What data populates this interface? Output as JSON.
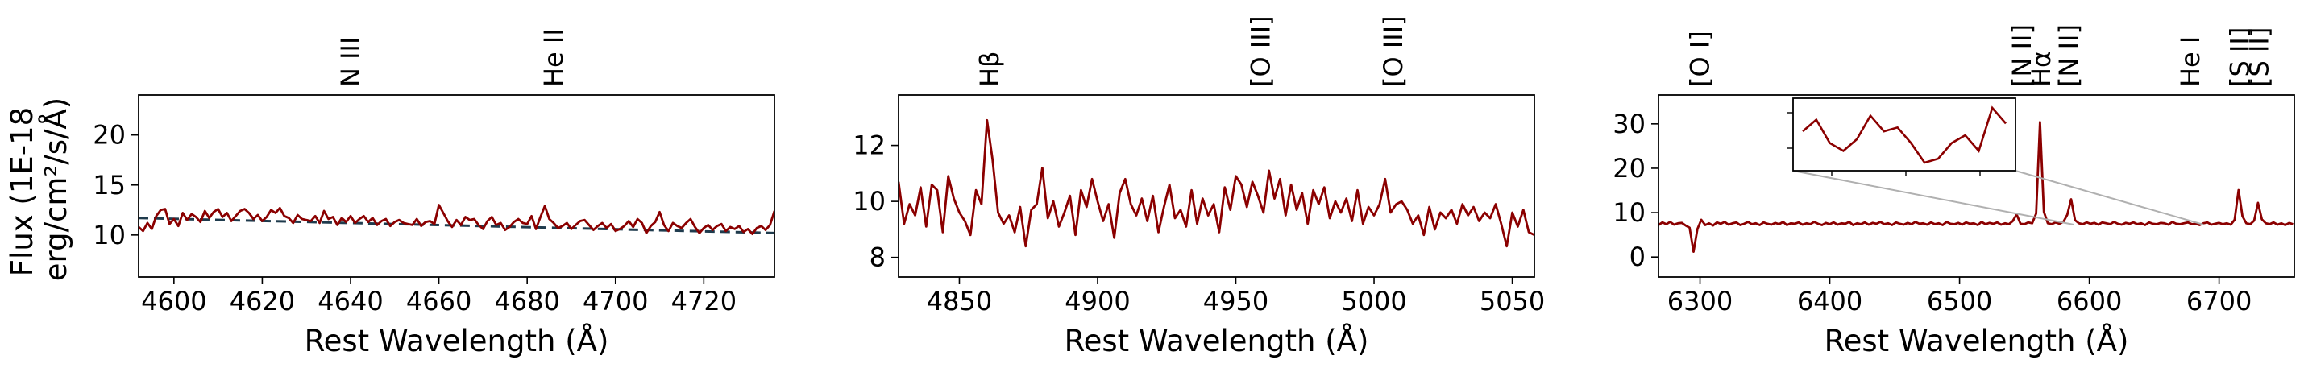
{
  "figure": {
    "ylabel_line1": "Flux (1E-18",
    "ylabel_line2": "erg/cm²/s/Å)"
  },
  "colors": {
    "spectrum": "#8b0000",
    "continuum": "#1f3b4d",
    "inset_lines": "#b0b0b0"
  },
  "chart_data": [
    {
      "type": "line",
      "xlabel": "Rest Wavelength (Å)",
      "xlim": [
        4592,
        4736
      ],
      "ylim": [
        5.8,
        24
      ],
      "xticks": [
        4600,
        4620,
        4640,
        4660,
        4680,
        4700,
        4720
      ],
      "yticks": [
        10,
        15,
        20
      ],
      "line_markers": [
        {
          "label": "N III",
          "x": 4640
        },
        {
          "label": "He II",
          "x": 4686
        }
      ],
      "continuum": {
        "x": [
          4592,
          4736
        ],
        "y": [
          11.7,
          10.2
        ]
      },
      "series": {
        "x": [
          4592,
          4593,
          4594,
          4595,
          4596,
          4597,
          4598,
          4599,
          4600,
          4601,
          4602,
          4603,
          4604,
          4605,
          4606,
          4607,
          4608,
          4609,
          4610,
          4611,
          4612,
          4613,
          4614,
          4615,
          4616,
          4617,
          4618,
          4619,
          4620,
          4621,
          4622,
          4623,
          4624,
          4625,
          4626,
          4627,
          4628,
          4629,
          4630,
          4631,
          4632,
          4633,
          4634,
          4635,
          4636,
          4637,
          4638,
          4639,
          4640,
          4641,
          4642,
          4643,
          4644,
          4645,
          4646,
          4647,
          4648,
          4649,
          4650,
          4651,
          4652,
          4653,
          4654,
          4655,
          4656,
          4657,
          4658,
          4659,
          4660,
          4661,
          4662,
          4663,
          4664,
          4665,
          4666,
          4667,
          4668,
          4669,
          4670,
          4671,
          4672,
          4673,
          4674,
          4675,
          4676,
          4677,
          4678,
          4679,
          4680,
          4681,
          4682,
          4683,
          4684,
          4685,
          4686,
          4687,
          4688,
          4689,
          4690,
          4691,
          4692,
          4693,
          4694,
          4695,
          4696,
          4697,
          4698,
          4699,
          4700,
          4701,
          4702,
          4703,
          4704,
          4705,
          4706,
          4707,
          4708,
          4709,
          4710,
          4711,
          4712,
          4713,
          4714,
          4715,
          4716,
          4717,
          4718,
          4719,
          4720,
          4721,
          4722,
          4723,
          4724,
          4725,
          4726,
          4727,
          4728,
          4729,
          4730,
          4731,
          4732,
          4733,
          4734,
          4735,
          4736
        ],
        "y": [
          10.8,
          10.4,
          11.2,
          10.6,
          11.9,
          12.5,
          12.6,
          11.1,
          11.6,
          10.9,
          12.2,
          11.5,
          12.1,
          11.8,
          11.3,
          12.4,
          11.7,
          12.3,
          12.6,
          11.8,
          12.2,
          11.4,
          11.9,
          12.4,
          12.6,
          12.2,
          11.6,
          12.0,
          11.4,
          11.8,
          12.5,
          12.2,
          12.7,
          11.9,
          11.7,
          11.2,
          12.0,
          11.6,
          11.5,
          11.4,
          11.9,
          11.2,
          12.4,
          11.6,
          11.8,
          11.0,
          11.7,
          11.3,
          11.9,
          11.2,
          11.6,
          11.9,
          11.3,
          11.7,
          11.0,
          11.4,
          11.6,
          10.9,
          11.3,
          11.5,
          11.2,
          11.1,
          11.0,
          11.6,
          10.9,
          11.3,
          11.4,
          11.1,
          13.0,
          12.2,
          11.4,
          10.8,
          11.5,
          11.0,
          11.8,
          11.5,
          11.6,
          11.0,
          10.6,
          11.4,
          11.8,
          11.0,
          11.2,
          10.5,
          10.8,
          11.3,
          11.6,
          11.2,
          11.1,
          11.9,
          10.6,
          11.8,
          12.9,
          11.6,
          11.2,
          10.7,
          10.9,
          11.2,
          10.6,
          11.0,
          11.4,
          11.5,
          11.0,
          10.5,
          10.9,
          11.2,
          10.7,
          11.1,
          10.4,
          10.6,
          10.9,
          11.4,
          10.8,
          11.6,
          11.2,
          10.2,
          10.9,
          11.3,
          12.3,
          11.0,
          10.4,
          11.2,
          10.9,
          10.7,
          11.2,
          11.6,
          10.8,
          10.2,
          10.7,
          11.0,
          10.5,
          10.9,
          11.1,
          10.4,
          10.8,
          10.6,
          10.9,
          10.3,
          10.6,
          10.1,
          10.7,
          10.9,
          10.5,
          11.0,
          12.4
        ]
      }
    },
    {
      "type": "line",
      "xlabel": "Rest Wavelength (Å)",
      "xlim": [
        4828,
        5058
      ],
      "ylim": [
        7.3,
        13.8
      ],
      "xticks": [
        4850,
        4900,
        4950,
        5000,
        5050
      ],
      "yticks": [
        8,
        10,
        12
      ],
      "line_markers": [
        {
          "label": "Hβ",
          "x": 4861
        },
        {
          "label": "[O III]",
          "x": 4959
        },
        {
          "label": "[O III]",
          "x": 5007
        }
      ],
      "series": {
        "x": [
          4828,
          4830,
          4832,
          4834,
          4836,
          4838,
          4840,
          4842,
          4844,
          4846,
          4848,
          4850,
          4852,
          4854,
          4856,
          4858,
          4860,
          4862,
          4864,
          4866,
          4868,
          4870,
          4872,
          4874,
          4876,
          4878,
          4880,
          4882,
          4884,
          4886,
          4888,
          4890,
          4892,
          4894,
          4896,
          4898,
          4900,
          4902,
          4904,
          4906,
          4908,
          4910,
          4912,
          4914,
          4916,
          4918,
          4920,
          4922,
          4924,
          4926,
          4928,
          4930,
          4932,
          4934,
          4936,
          4938,
          4940,
          4942,
          4944,
          4946,
          4948,
          4950,
          4952,
          4954,
          4956,
          4958,
          4960,
          4962,
          4964,
          4966,
          4968,
          4970,
          4972,
          4974,
          4976,
          4978,
          4980,
          4982,
          4984,
          4986,
          4988,
          4990,
          4992,
          4994,
          4996,
          4998,
          5000,
          5002,
          5004,
          5006,
          5008,
          5010,
          5012,
          5014,
          5016,
          5018,
          5020,
          5022,
          5024,
          5026,
          5028,
          5030,
          5032,
          5034,
          5036,
          5038,
          5040,
          5042,
          5044,
          5046,
          5048,
          5050,
          5052,
          5054,
          5056,
          5058
        ],
        "y": [
          10.7,
          9.2,
          9.9,
          9.5,
          10.5,
          9.1,
          10.6,
          10.4,
          8.9,
          10.9,
          10.1,
          9.6,
          9.3,
          8.8,
          10.4,
          9.9,
          12.9,
          11.5,
          9.6,
          9.2,
          9.5,
          8.9,
          9.8,
          8.4,
          9.7,
          9.9,
          11.2,
          9.4,
          10.0,
          9.1,
          9.6,
          10.2,
          8.8,
          10.4,
          9.8,
          10.8,
          10.0,
          9.3,
          9.9,
          8.7,
          10.3,
          10.8,
          9.9,
          9.5,
          10.1,
          9.3,
          10.2,
          8.9,
          9.8,
          10.6,
          9.4,
          9.7,
          9.1,
          10.4,
          9.2,
          10.1,
          9.5,
          9.9,
          8.9,
          10.5,
          9.7,
          10.9,
          10.6,
          9.8,
          10.7,
          10.2,
          9.6,
          11.1,
          10.1,
          10.8,
          9.5,
          10.6,
          9.7,
          10.3,
          9.2,
          10.4,
          9.9,
          10.5,
          9.4,
          10.0,
          9.6,
          10.1,
          9.3,
          10.4,
          9.2,
          9.8,
          9.5,
          9.9,
          10.8,
          9.6,
          9.9,
          10.0,
          9.7,
          9.2,
          9.5,
          8.8,
          9.8,
          9.0,
          9.6,
          9.4,
          9.7,
          9.2,
          9.9,
          9.5,
          9.8,
          9.3,
          9.6,
          9.4,
          9.9,
          9.2,
          8.4,
          9.6,
          9.1,
          9.7,
          8.9,
          8.8
        ]
      }
    },
    {
      "type": "line",
      "xlabel": "Rest Wavelength (Å)",
      "xlim": [
        6268,
        6758
      ],
      "ylim": [
        -4.5,
        36.5
      ],
      "xticks": [
        6300,
        6400,
        6500,
        6600,
        6700
      ],
      "yticks": [
        0,
        10,
        20,
        30
      ],
      "line_markers": [
        {
          "label": "[O I]",
          "x": 6300
        },
        {
          "label": "[N II]",
          "x": 6548
        },
        {
          "label": "Hα",
          "x": 6563
        },
        {
          "label": "[N II]",
          "x": 6584
        },
        {
          "label": "He I",
          "x": 6678
        },
        {
          "label": "[S II]",
          "x": 6716
        },
        {
          "label": "[S II]",
          "x": 6731
        }
      ],
      "series": {
        "x": [
          6268,
          6271,
          6274,
          6277,
          6280,
          6283,
          6286,
          6289,
          6292,
          6295,
          6298,
          6301,
          6304,
          6307,
          6310,
          6313,
          6316,
          6319,
          6322,
          6325,
          6328,
          6331,
          6334,
          6337,
          6340,
          6343,
          6346,
          6349,
          6352,
          6355,
          6358,
          6361,
          6364,
          6367,
          6370,
          6373,
          6376,
          6379,
          6382,
          6385,
          6388,
          6391,
          6394,
          6397,
          6400,
          6403,
          6406,
          6409,
          6412,
          6415,
          6418,
          6421,
          6424,
          6427,
          6430,
          6433,
          6436,
          6439,
          6442,
          6445,
          6448,
          6451,
          6454,
          6457,
          6460,
          6463,
          6466,
          6469,
          6472,
          6475,
          6478,
          6481,
          6484,
          6487,
          6490,
          6493,
          6496,
          6499,
          6502,
          6505,
          6508,
          6511,
          6514,
          6517,
          6520,
          6523,
          6526,
          6529,
          6532,
          6535,
          6538,
          6541,
          6544,
          6547,
          6550,
          6553,
          6556,
          6559,
          6562,
          6565,
          6568,
          6571,
          6574,
          6577,
          6580,
          6583,
          6586,
          6589,
          6592,
          6595,
          6598,
          6601,
          6604,
          6607,
          6610,
          6613,
          6616,
          6619,
          6622,
          6625,
          6628,
          6631,
          6634,
          6637,
          6640,
          6643,
          6646,
          6649,
          6652,
          6655,
          6658,
          6661,
          6664,
          6667,
          6670,
          6673,
          6676,
          6679,
          6682,
          6685,
          6688,
          6691,
          6694,
          6697,
          6700,
          6703,
          6706,
          6709,
          6712,
          6715,
          6718,
          6721,
          6724,
          6727,
          6730,
          6733,
          6736,
          6739,
          6742,
          6745,
          6748,
          6751,
          6754,
          6757
        ],
        "y": [
          7.2,
          7.8,
          7.4,
          7.9,
          7.3,
          7.6,
          7.7,
          7.1,
          6.6,
          1.2,
          6.3,
          8.4,
          7.2,
          7.6,
          7.1,
          7.8,
          7.5,
          7.9,
          7.3,
          7.6,
          7.8,
          7.2,
          7.5,
          7.9,
          7.4,
          7.6,
          7.2,
          7.8,
          7.5,
          7.3,
          7.7,
          7.4,
          7.9,
          7.2,
          7.6,
          7.5,
          7.8,
          7.3,
          7.6,
          7.4,
          7.9,
          7.5,
          7.2,
          7.7,
          7.4,
          7.8,
          7.3,
          7.6,
          7.5,
          7.9,
          7.2,
          7.6,
          7.4,
          7.8,
          7.3,
          7.7,
          7.5,
          7.9,
          7.4,
          7.6,
          7.2,
          7.8,
          7.5,
          7.3,
          7.7,
          7.4,
          7.9,
          7.5,
          7.6,
          7.3,
          7.8,
          7.4,
          7.6,
          7.2,
          7.9,
          7.5,
          7.4,
          7.7,
          7.3,
          7.8,
          7.5,
          7.6,
          7.2,
          7.9,
          7.4,
          7.7,
          7.5,
          7.8,
          7.3,
          7.6,
          7.4,
          8.1,
          9.6,
          7.5,
          7.4,
          7.8,
          7.6,
          9.8,
          30.4,
          10.2,
          7.6,
          7.4,
          7.8,
          7.5,
          7.9,
          9.5,
          13.0,
          8.3,
          7.6,
          7.4,
          7.8,
          7.5,
          7.7,
          7.3,
          7.8,
          7.6,
          7.4,
          7.9,
          7.5,
          7.3,
          7.7,
          7.5,
          7.8,
          7.4,
          7.6,
          7.2,
          7.8,
          7.5,
          7.4,
          7.7,
          7.6,
          7.3,
          7.9,
          7.5,
          7.4,
          7.6,
          7.8,
          7.4,
          7.5,
          7.2,
          7.6,
          7.8,
          7.3,
          7.5,
          7.7,
          7.4,
          7.6,
          7.3,
          8.4,
          15.1,
          9.2,
          7.6,
          7.4,
          8.2,
          12.2,
          8.5,
          7.6,
          7.4,
          7.8,
          7.3,
          7.6,
          7.2,
          7.7,
          7.4
        ],
        "inset": {
          "xrange": [
            6378,
            6688
          ],
          "y": [
            7.7,
            7.85,
            7.55,
            7.45,
            7.6,
            7.9,
            7.7,
            7.75,
            7.55,
            7.3,
            7.35,
            7.55,
            7.65,
            7.45,
            8.0,
            7.8
          ]
        }
      }
    }
  ]
}
